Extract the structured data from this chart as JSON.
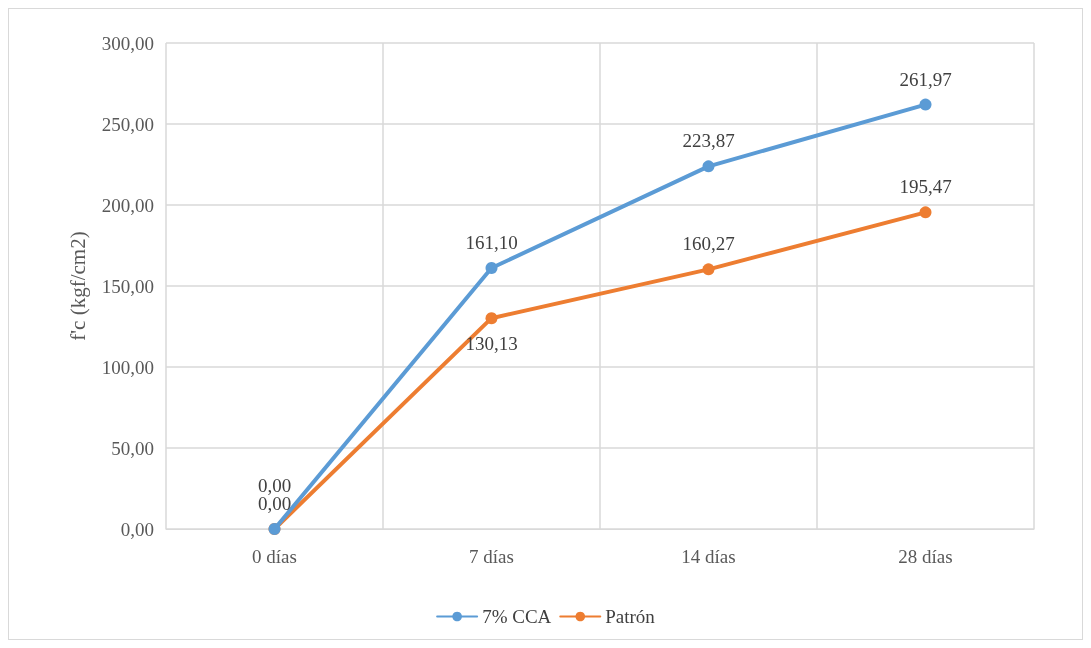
{
  "chart_data": {
    "type": "line",
    "ylabel": "f'c (kgf/cm2)",
    "categories": [
      "0 días",
      "7 días",
      "14 días",
      "28 días"
    ],
    "series": [
      {
        "name": "7% CCA",
        "color": "#5b9bd5",
        "values": [
          0,
          161.1,
          223.87,
          261.97
        ],
        "value_labels": [
          "0,00",
          "161,10",
          "223,87",
          "261,97"
        ]
      },
      {
        "name": "Patrón",
        "color": "#ed7d31",
        "values": [
          0,
          130.13,
          160.27,
          195.47
        ],
        "value_labels": [
          "0,00",
          "130,13",
          "160,27",
          "195,47"
        ]
      }
    ],
    "ylim": [
      0,
      300
    ],
    "yticks": [
      {
        "value": 0,
        "label": "0,00"
      },
      {
        "value": 50,
        "label": "50,00"
      },
      {
        "value": 100,
        "label": "100,00"
      },
      {
        "value": 150,
        "label": "150,00"
      },
      {
        "value": 200,
        "label": "200,00"
      },
      {
        "value": 250,
        "label": "250,00"
      },
      {
        "value": 300,
        "label": "300,00"
      }
    ],
    "grid": true,
    "legend": "bottom",
    "marker": "circle",
    "line_style": "solid"
  }
}
